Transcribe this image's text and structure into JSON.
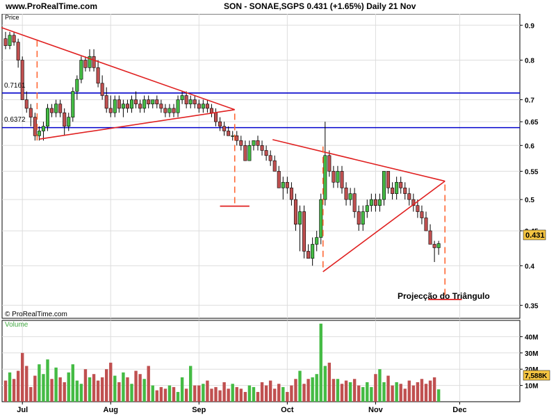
{
  "header": {
    "site": "www.ProRealTime.com",
    "title": "SON - SONAE,SGPS    0.431 (+1.65%)    Daily  21 Nov"
  },
  "price_panel": {
    "label": "Price",
    "copyright": "© ProRealTime.com",
    "annotation": "Projecção do Triângulo",
    "current_price_tag": "0.431",
    "hline_labels": [
      "0.7161",
      "0.6372"
    ]
  },
  "volume_panel": {
    "label": "Volume",
    "current_volume_tag": "7,588K"
  },
  "colors": {
    "up": "#44bb44",
    "down": "#c05050",
    "trendline": "#e02020",
    "hline": "#0000cc",
    "projection": "#ff6633",
    "tag_bg": "#f5c542",
    "grid": "#dddddd"
  },
  "chart_data": [
    {
      "type": "candlestick",
      "title": "SON - SONAE,SGPS",
      "ylabel": "Price",
      "scale": "log",
      "ylim": [
        0.335,
        0.935
      ],
      "y_ticks": [
        0.35,
        0.4,
        0.45,
        0.5,
        0.55,
        0.6,
        0.65,
        0.7,
        0.8,
        0.9
      ],
      "x_ticks": [
        "Jul",
        "Aug",
        "Sep",
        "Oct",
        "Nov",
        "Dec"
      ],
      "x_tick_bar_index": [
        4,
        25,
        46,
        67,
        88,
        108
      ],
      "ohlc": [
        [
          0.86,
          0.88,
          0.83,
          0.84
        ],
        [
          0.84,
          0.88,
          0.83,
          0.87
        ],
        [
          0.87,
          0.88,
          0.84,
          0.85
        ],
        [
          0.85,
          0.86,
          0.78,
          0.8
        ],
        [
          0.8,
          0.81,
          0.7,
          0.7
        ],
        [
          0.7,
          0.72,
          0.67,
          0.68
        ],
        [
          0.68,
          0.69,
          0.64,
          0.66
        ],
        [
          0.66,
          0.67,
          0.61,
          0.62
        ],
        [
          0.62,
          0.64,
          0.61,
          0.63
        ],
        [
          0.63,
          0.65,
          0.61,
          0.64
        ],
        [
          0.64,
          0.69,
          0.63,
          0.68
        ],
        [
          0.68,
          0.69,
          0.66,
          0.67
        ],
        [
          0.67,
          0.7,
          0.66,
          0.69
        ],
        [
          0.69,
          0.7,
          0.66,
          0.67
        ],
        [
          0.67,
          0.68,
          0.62,
          0.64
        ],
        [
          0.64,
          0.67,
          0.63,
          0.66
        ],
        [
          0.66,
          0.73,
          0.65,
          0.72
        ],
        [
          0.72,
          0.76,
          0.7,
          0.75
        ],
        [
          0.75,
          0.81,
          0.74,
          0.8
        ],
        [
          0.8,
          0.81,
          0.77,
          0.78
        ],
        [
          0.78,
          0.83,
          0.77,
          0.81
        ],
        [
          0.81,
          0.83,
          0.77,
          0.78
        ],
        [
          0.78,
          0.8,
          0.73,
          0.74
        ],
        [
          0.74,
          0.76,
          0.7,
          0.71
        ],
        [
          0.71,
          0.73,
          0.67,
          0.68
        ],
        [
          0.68,
          0.71,
          0.66,
          0.67
        ],
        [
          0.67,
          0.71,
          0.66,
          0.7
        ],
        [
          0.7,
          0.71,
          0.67,
          0.68
        ],
        [
          0.68,
          0.7,
          0.66,
          0.69
        ],
        [
          0.69,
          0.7,
          0.67,
          0.68
        ],
        [
          0.68,
          0.71,
          0.67,
          0.7
        ],
        [
          0.7,
          0.72,
          0.68,
          0.69
        ],
        [
          0.69,
          0.7,
          0.67,
          0.68
        ],
        [
          0.68,
          0.71,
          0.67,
          0.7
        ],
        [
          0.7,
          0.71,
          0.68,
          0.69
        ],
        [
          0.69,
          0.7,
          0.68,
          0.7
        ],
        [
          0.7,
          0.71,
          0.68,
          0.69
        ],
        [
          0.69,
          0.7,
          0.67,
          0.68
        ],
        [
          0.68,
          0.69,
          0.66,
          0.67
        ],
        [
          0.67,
          0.69,
          0.66,
          0.68
        ],
        [
          0.68,
          0.69,
          0.66,
          0.67
        ],
        [
          0.67,
          0.71,
          0.66,
          0.7
        ],
        [
          0.7,
          0.72,
          0.69,
          0.71
        ],
        [
          0.71,
          0.72,
          0.68,
          0.69
        ],
        [
          0.69,
          0.71,
          0.68,
          0.7
        ],
        [
          0.7,
          0.71,
          0.68,
          0.69
        ],
        [
          0.69,
          0.7,
          0.67,
          0.68
        ],
        [
          0.68,
          0.7,
          0.67,
          0.69
        ],
        [
          0.69,
          0.7,
          0.67,
          0.68
        ],
        [
          0.68,
          0.69,
          0.66,
          0.67
        ],
        [
          0.67,
          0.68,
          0.64,
          0.65
        ],
        [
          0.65,
          0.66,
          0.63,
          0.64
        ],
        [
          0.64,
          0.65,
          0.62,
          0.63
        ],
        [
          0.63,
          0.64,
          0.62,
          0.62
        ],
        [
          0.62,
          0.63,
          0.61,
          0.62
        ],
        [
          0.62,
          0.63,
          0.6,
          0.61
        ],
        [
          0.61,
          0.62,
          0.59,
          0.6
        ],
        [
          0.6,
          0.61,
          0.57,
          0.57
        ],
        [
          0.57,
          0.61,
          0.57,
          0.6
        ],
        [
          0.6,
          0.61,
          0.59,
          0.61
        ],
        [
          0.61,
          0.62,
          0.59,
          0.6
        ],
        [
          0.6,
          0.61,
          0.58,
          0.59
        ],
        [
          0.59,
          0.6,
          0.57,
          0.58
        ],
        [
          0.58,
          0.59,
          0.56,
          0.57
        ],
        [
          0.57,
          0.58,
          0.55,
          0.55
        ],
        [
          0.55,
          0.56,
          0.52,
          0.52
        ],
        [
          0.52,
          0.54,
          0.5,
          0.53
        ],
        [
          0.53,
          0.54,
          0.51,
          0.52
        ],
        [
          0.52,
          0.53,
          0.49,
          0.5
        ],
        [
          0.5,
          0.51,
          0.45,
          0.46
        ],
        [
          0.46,
          0.49,
          0.42,
          0.48
        ],
        [
          0.48,
          0.49,
          0.41,
          0.42
        ],
        [
          0.42,
          0.43,
          0.41,
          0.41
        ],
        [
          0.41,
          0.44,
          0.4,
          0.43
        ],
        [
          0.43,
          0.45,
          0.42,
          0.44
        ],
        [
          0.44,
          0.51,
          0.43,
          0.5
        ],
        [
          0.5,
          0.65,
          0.49,
          0.58
        ],
        [
          0.58,
          0.59,
          0.54,
          0.55
        ],
        [
          0.55,
          0.56,
          0.52,
          0.53
        ],
        [
          0.53,
          0.56,
          0.52,
          0.55
        ],
        [
          0.55,
          0.56,
          0.51,
          0.52
        ],
        [
          0.52,
          0.53,
          0.49,
          0.5
        ],
        [
          0.5,
          0.52,
          0.49,
          0.51
        ],
        [
          0.51,
          0.52,
          0.47,
          0.48
        ],
        [
          0.48,
          0.49,
          0.45,
          0.46
        ],
        [
          0.46,
          0.49,
          0.45,
          0.48
        ],
        [
          0.48,
          0.5,
          0.47,
          0.49
        ],
        [
          0.49,
          0.51,
          0.48,
          0.5
        ],
        [
          0.5,
          0.51,
          0.48,
          0.49
        ],
        [
          0.49,
          0.51,
          0.48,
          0.5
        ],
        [
          0.5,
          0.55,
          0.49,
          0.55
        ],
        [
          0.55,
          0.55,
          0.51,
          0.52
        ],
        [
          0.52,
          0.53,
          0.5,
          0.51
        ],
        [
          0.51,
          0.54,
          0.5,
          0.53
        ],
        [
          0.53,
          0.54,
          0.51,
          0.52
        ],
        [
          0.52,
          0.53,
          0.5,
          0.51
        ],
        [
          0.51,
          0.52,
          0.49,
          0.5
        ],
        [
          0.5,
          0.51,
          0.48,
          0.49
        ],
        [
          0.49,
          0.5,
          0.47,
          0.48
        ],
        [
          0.48,
          0.49,
          0.46,
          0.47
        ],
        [
          0.47,
          0.48,
          0.45,
          0.45
        ],
        [
          0.45,
          0.46,
          0.43,
          0.43
        ],
        [
          0.43,
          0.435,
          0.405,
          0.425
        ],
        [
          0.425,
          0.435,
          0.415,
          0.431
        ]
      ]
    },
    {
      "type": "bar",
      "title": "Volume",
      "ylabel": "Volume",
      "ylim": [
        0,
        50
      ],
      "unit": "M",
      "y_ticks": [
        10,
        20,
        30,
        40
      ],
      "values": [
        13,
        18,
        14,
        19,
        30,
        22,
        9,
        16,
        23,
        17,
        26,
        14,
        21,
        15,
        12,
        18,
        23,
        13,
        11,
        20,
        15,
        17,
        13,
        15,
        20,
        24,
        16,
        12,
        18,
        15,
        11,
        19,
        17,
        14,
        22,
        10,
        7,
        9,
        8,
        10,
        9,
        6,
        15,
        8,
        22,
        10,
        10,
        11,
        13,
        8,
        9,
        7,
        12,
        8,
        11,
        9,
        8,
        6,
        10,
        9,
        6,
        12,
        10,
        13,
        8,
        11,
        9,
        6,
        10,
        14,
        19,
        11,
        14,
        15,
        17,
        48,
        22,
        24,
        14,
        14,
        11,
        13,
        12,
        14,
        10,
        9,
        12,
        9,
        17,
        20,
        12,
        16,
        10,
        12,
        11,
        8,
        13,
        10,
        12,
        14,
        11,
        13,
        15,
        7.6
      ]
    }
  ]
}
